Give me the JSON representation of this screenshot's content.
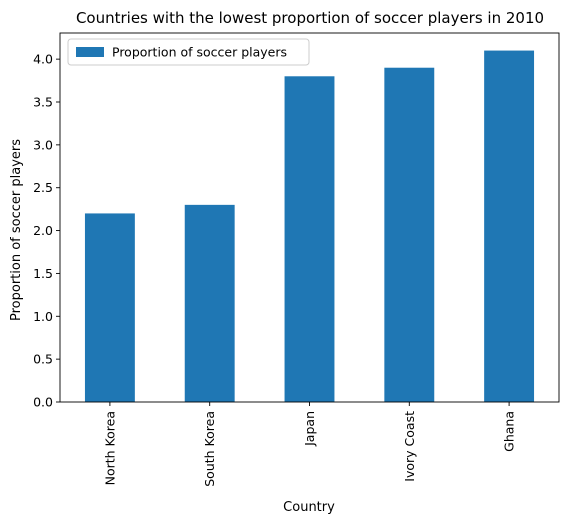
{
  "chart_data": {
    "type": "bar",
    "title": "Countries with the lowest proportion of soccer players in 2010",
    "xlabel": "Country",
    "ylabel": "Proportion of soccer players",
    "categories": [
      "North Korea",
      "South Korea",
      "Japan",
      "Ivory Coast",
      "Ghana"
    ],
    "series": [
      {
        "name": "Proportion of soccer players",
        "values": [
          2.2,
          2.3,
          3.8,
          3.9,
          4.1
        ],
        "color": "#1f77b4"
      }
    ],
    "ylim": [
      0,
      4.305
    ],
    "yticks": [
      "0.0",
      "0.5",
      "1.0",
      "1.5",
      "2.0",
      "2.5",
      "3.0",
      "3.5",
      "4.0"
    ],
    "grid": false,
    "legend_position": "upper-left"
  }
}
